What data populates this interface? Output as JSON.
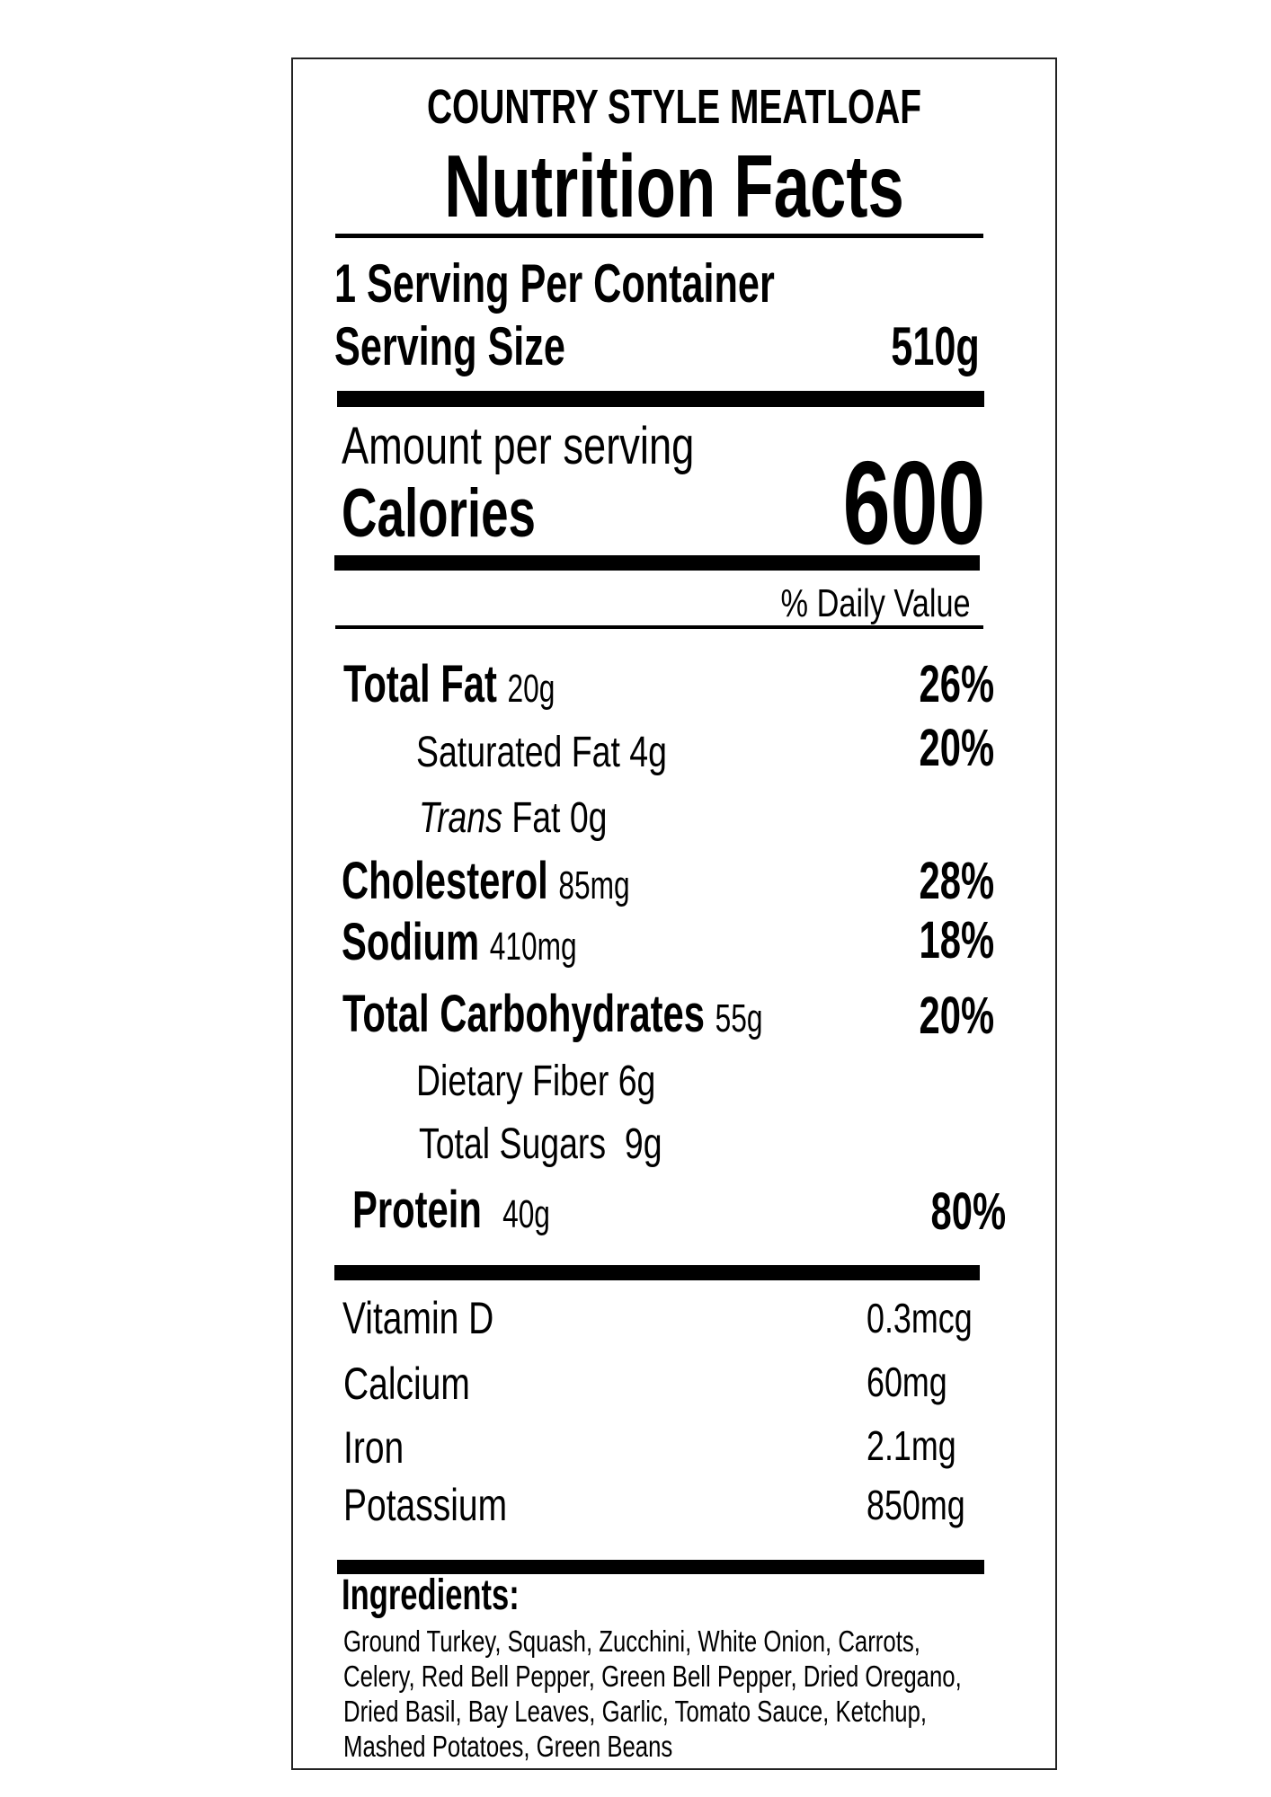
{
  "label": {
    "product_name": "COUNTRY STYLE MEATLOAF",
    "title": "Nutrition Facts",
    "servings_per_container": "1 Serving Per Container",
    "serving_size_label": "Serving Size",
    "serving_size_value": "510g",
    "amount_per_serving": "Amount per serving",
    "calories_label": "Calories",
    "calories_value": "600",
    "daily_value_header": "% Daily Value",
    "nutrients": [
      {
        "name": "Total Fat",
        "amount": "20g",
        "dv": "26%"
      },
      {
        "name": "Saturated Fat",
        "amount": "4g",
        "dv": "20%"
      },
      {
        "name_italic": "Trans",
        "name": "Fat",
        "amount": "0g"
      },
      {
        "name": "Cholesterol",
        "amount": "85mg",
        "dv": "28%"
      },
      {
        "name": "Sodium",
        "amount": "410mg",
        "dv": "18%"
      },
      {
        "name": "Total Carbohydrates",
        "amount": "55g",
        "dv": "20%"
      },
      {
        "name": "Dietary Fiber",
        "amount": "6g"
      },
      {
        "name": "Total Sugars",
        "amount": "9g"
      },
      {
        "name": "Protein",
        "amount": "40g",
        "dv": "80%"
      }
    ],
    "vitamins": [
      {
        "name": "Vitamin D",
        "amount": "0.3mcg"
      },
      {
        "name": "Calcium",
        "amount": "60mg"
      },
      {
        "name": "Iron",
        "amount": "2.1mg"
      },
      {
        "name": "Potassium",
        "amount": "850mg"
      }
    ],
    "ingredients_label": "Ingredients:",
    "ingredients_lines": [
      "Ground Turkey, Squash, Zucchini, White Onion, Carrots,",
      "Celery, Red Bell Pepper, Green Bell Pepper, Dried Oregano,",
      "Dried Basil, Bay Leaves, Garlic, Tomato Sauce, Ketchup,",
      "Mashed Potatoes, Green Beans"
    ]
  }
}
